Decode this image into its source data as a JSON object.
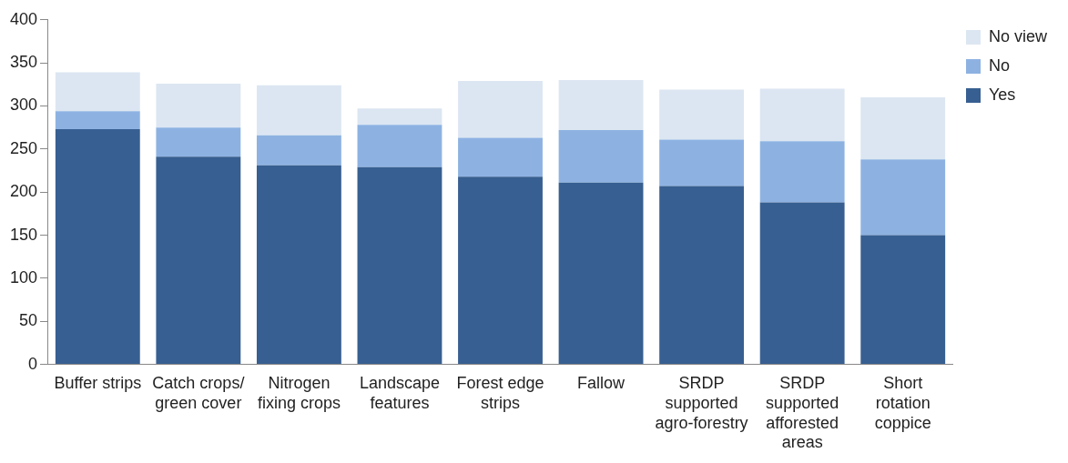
{
  "chart_data": {
    "type": "bar",
    "stacked": true,
    "categories": [
      "Buffer strips",
      "Catch crops/ green cover",
      "Nitrogen fixing crops",
      "Landscape features",
      "Forest edge strips",
      "Fallow",
      "SRDP supported agro-forestry",
      "SRDP supported afforested areas",
      "Short rotation coppice"
    ],
    "series": [
      {
        "name": "Yes",
        "color": "#375f91",
        "values": [
          273,
          241,
          231,
          229,
          218,
          211,
          207,
          188,
          150
        ]
      },
      {
        "name": "No",
        "color": "#8db2e2",
        "values": [
          21,
          34,
          35,
          49,
          45,
          61,
          54,
          71,
          88
        ]
      },
      {
        "name": "No view",
        "color": "#dce6f2",
        "values": [
          45,
          51,
          58,
          19,
          66,
          58,
          58,
          61,
          72
        ]
      }
    ],
    "ylim": [
      0,
      400
    ],
    "yticks": [
      0,
      50,
      100,
      150,
      200,
      250,
      300,
      350,
      400
    ],
    "grid": false,
    "legend": "top right"
  }
}
